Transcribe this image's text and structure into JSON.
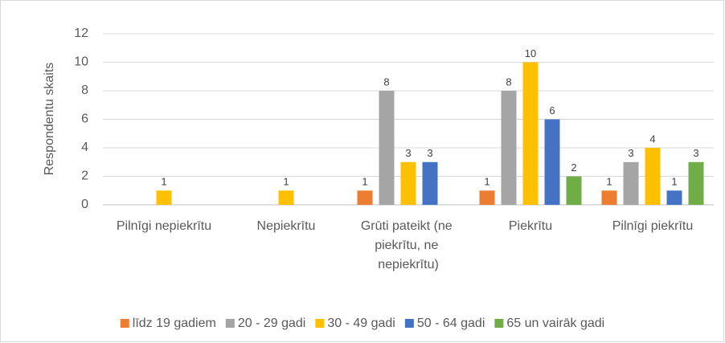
{
  "chart_data": {
    "type": "bar",
    "y_label": "Respondentu skaits",
    "categories": [
      "Pilnīgi nepiekrītu",
      "Nepiekrītu",
      "Grūti pateikt (ne piekrītu, ne nepiekrītu)",
      "Piekrītu",
      "Pilnīgi piekrītu"
    ],
    "series": [
      {
        "name": "līdz 19 gadiem",
        "color": "#ed7d31",
        "values": [
          null,
          null,
          1,
          1,
          1
        ]
      },
      {
        "name": "20 - 29 gadi",
        "color": "#a5a5a5",
        "values": [
          null,
          null,
          8,
          8,
          3
        ]
      },
      {
        "name": "30 - 49 gadi",
        "color": "#ffc000",
        "values": [
          1,
          1,
          3,
          10,
          4
        ]
      },
      {
        "name": "50 - 64 gadi",
        "color": "#4472c4",
        "values": [
          null,
          null,
          3,
          6,
          1
        ]
      },
      {
        "name": "65 un vairāk gadi",
        "color": "#70ad47",
        "values": [
          null,
          null,
          null,
          2,
          3
        ]
      }
    ],
    "ylim": [
      0,
      12
    ],
    "yticks": [
      0,
      2,
      4,
      6,
      8,
      10,
      12
    ],
    "grid": true,
    "legend": "bottom"
  }
}
